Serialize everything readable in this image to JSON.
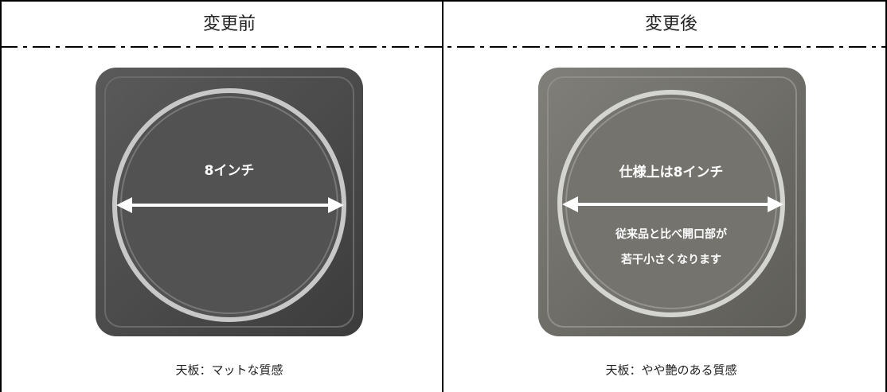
{
  "table": {
    "headers": [
      "変更前",
      "変更後"
    ],
    "cells": [
      {
        "annotations": [
          "8インチ"
        ],
        "caption": "天板：マットな質感"
      },
      {
        "annotations": [
          "仕様上は8インチ",
          "従来品と比べ開口部が",
          "若干小さくなります"
        ],
        "caption": "天板：やや艶のある質感"
      }
    ]
  }
}
